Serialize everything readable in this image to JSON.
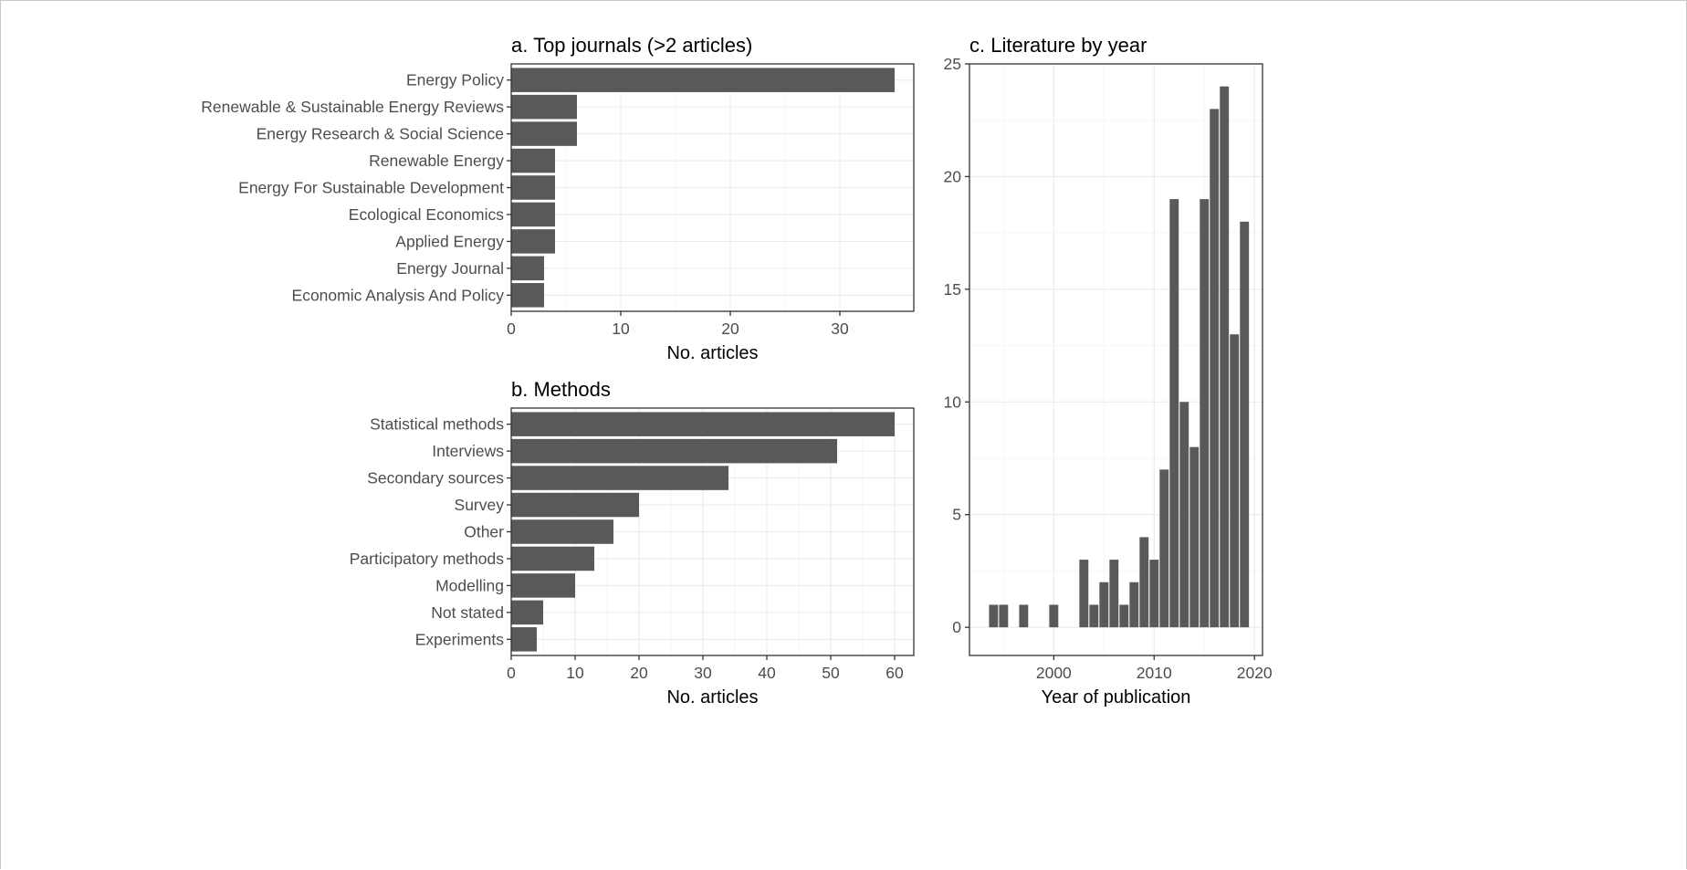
{
  "chart_data": [
    {
      "type": "bar",
      "orientation": "horizontal",
      "title": "a. Top journals (>2 articles)",
      "xlabel": "No. articles",
      "ylabel": "",
      "categories": [
        "Energy Policy",
        "Renewable & Sustainable Energy Reviews",
        "Energy Research & Social Science",
        "Renewable Energy",
        "Energy For Sustainable Development",
        "Ecological Economics",
        "Applied Energy",
        "Energy Journal",
        "Economic Analysis And Policy"
      ],
      "values": [
        35,
        6,
        6,
        4,
        4,
        4,
        4,
        3,
        3
      ],
      "xlim": [
        0,
        36.75
      ],
      "xticks": [
        0,
        10,
        20,
        30
      ],
      "grid": true,
      "color": "#595959"
    },
    {
      "type": "bar",
      "orientation": "horizontal",
      "title": "b. Methods",
      "xlabel": "No. articles",
      "ylabel": "",
      "categories": [
        "Statistical methods",
        "Interviews",
        "Secondary sources",
        "Survey",
        "Other",
        "Participatory methods",
        "Modelling",
        "Not stated",
        "Experiments"
      ],
      "values": [
        60,
        51,
        34,
        20,
        16,
        13,
        10,
        5,
        4
      ],
      "xlim": [
        0,
        63
      ],
      "xticks": [
        0,
        10,
        20,
        30,
        40,
        50,
        60
      ],
      "grid": true,
      "color": "#595959"
    },
    {
      "type": "bar",
      "orientation": "vertical",
      "title": "c. Literature by year",
      "xlabel": "Year of publication",
      "ylabel": "",
      "x": [
        1994,
        1995,
        1997,
        2000,
        2003,
        2004,
        2005,
        2006,
        2007,
        2008,
        2009,
        2010,
        2011,
        2012,
        2013,
        2014,
        2015,
        2016,
        2017,
        2018,
        2019
      ],
      "values": [
        1,
        1,
        1,
        1,
        3,
        1,
        2,
        3,
        1,
        2,
        4,
        3,
        7,
        19,
        10,
        8,
        19,
        23,
        24,
        13,
        18
      ],
      "xlim": [
        1991.6,
        2020.8
      ],
      "ylim": [
        -1.25,
        25
      ],
      "xticks": [
        2000,
        2010,
        2020
      ],
      "yticks": [
        0,
        5,
        10,
        15,
        20,
        25
      ],
      "grid": true,
      "color": "#595959"
    }
  ]
}
